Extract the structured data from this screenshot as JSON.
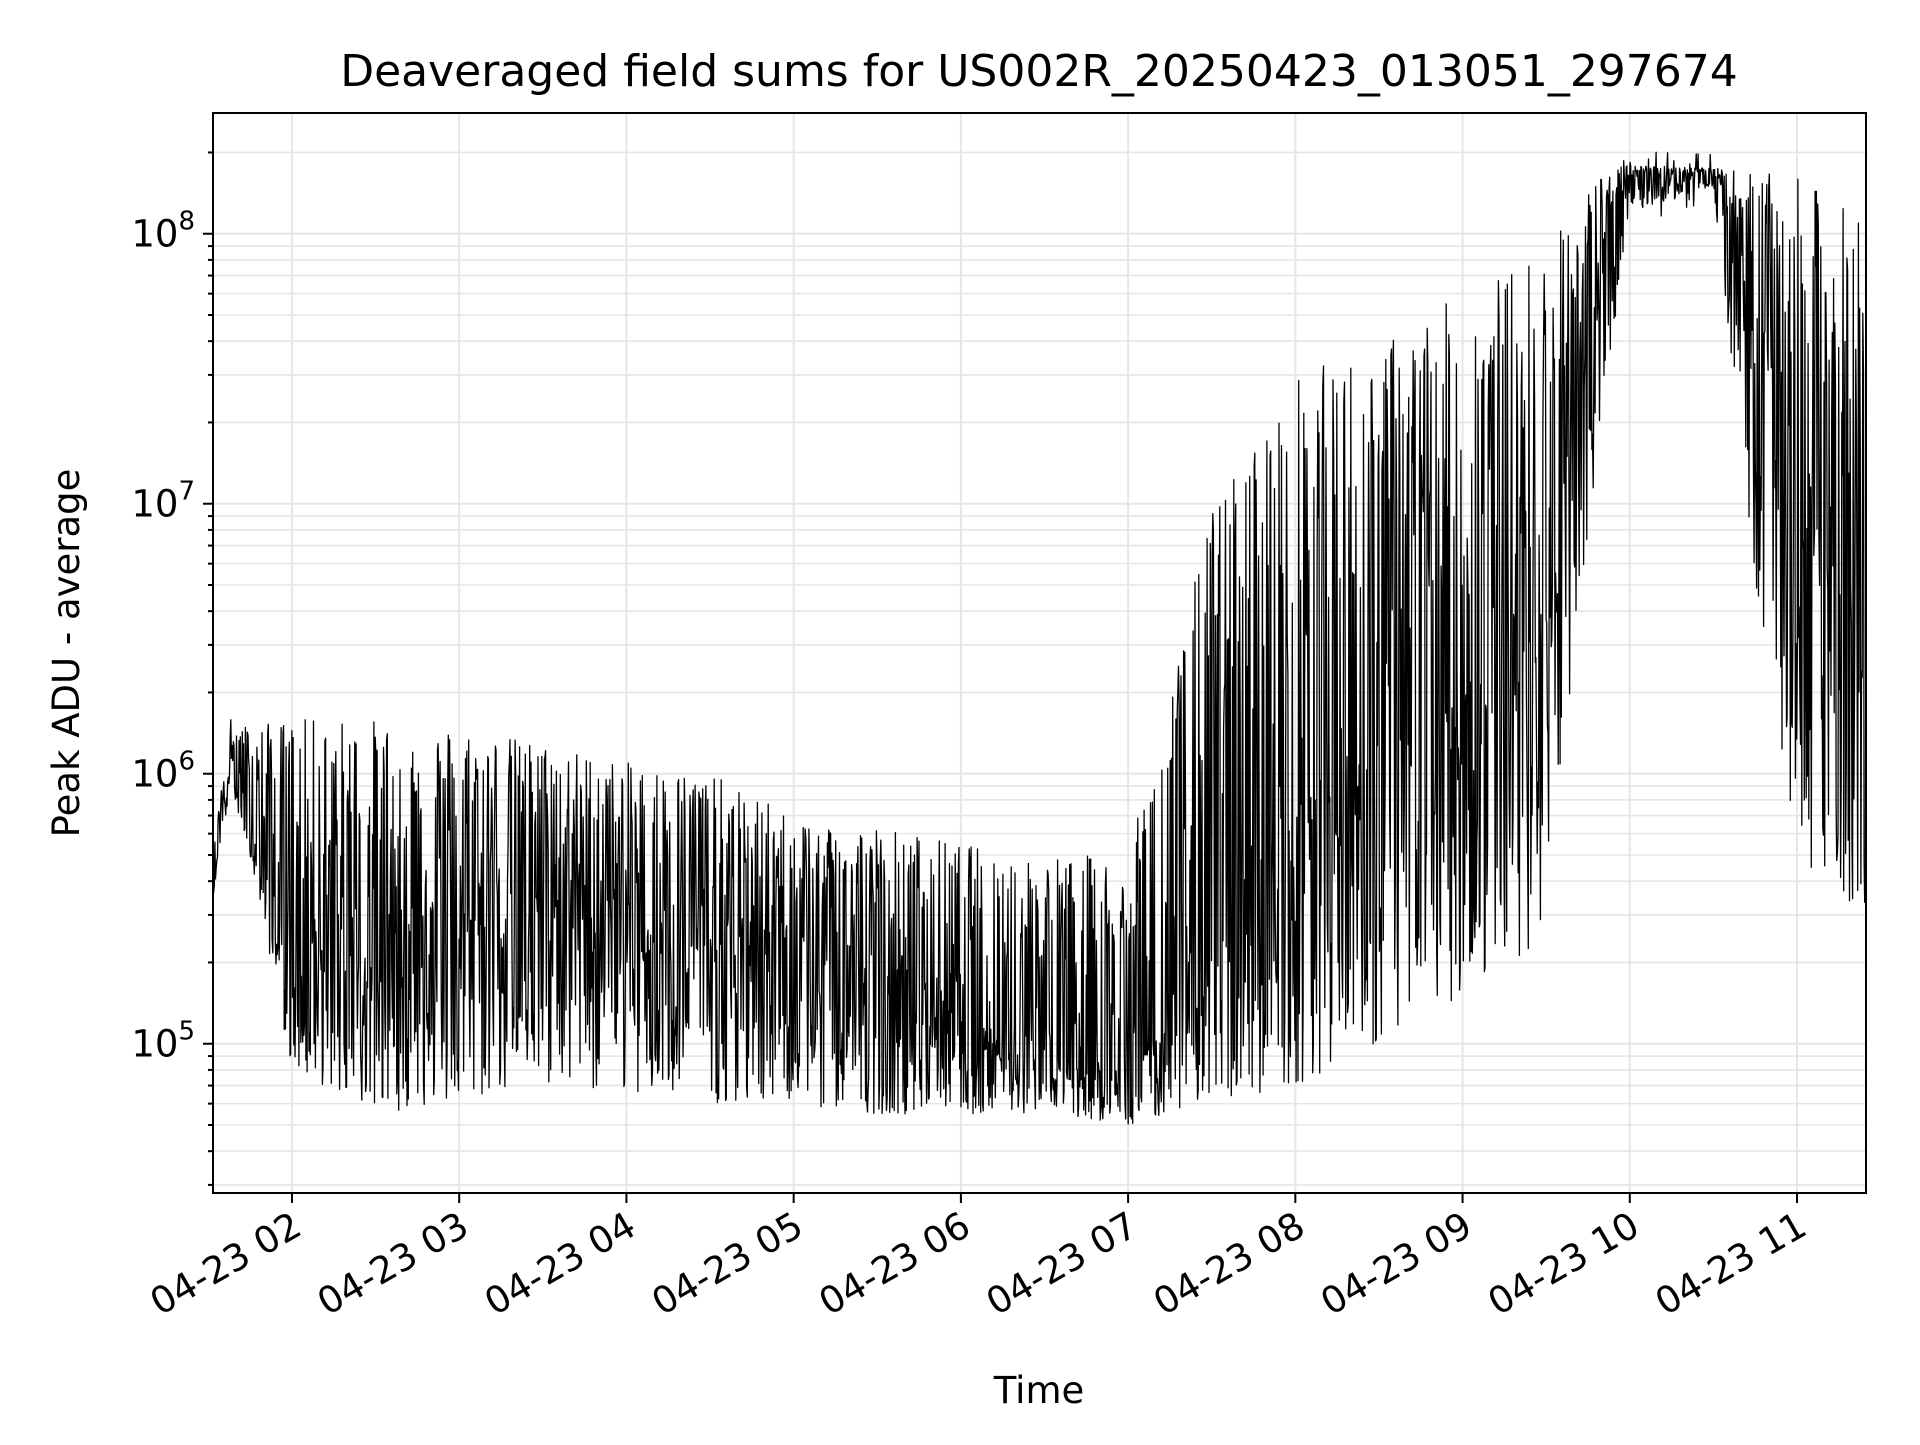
{
  "chart_data": {
    "type": "line",
    "title": "Deaveraged field sums for US002R_20250423_013051_297674",
    "xlabel": "Time",
    "ylabel": "Peak ADU - average",
    "y_scale": "log",
    "ylim": [
      28000,
      280000000
    ],
    "xlim": [
      "04-23 01:31:40",
      "04-23 11:24:45"
    ],
    "x_ticks": [
      "04-23 02",
      "04-23 03",
      "04-23 04",
      "04-23 05",
      "04-23 06",
      "04-23 07",
      "04-23 08",
      "04-23 09",
      "04-23 10",
      "04-23 11"
    ],
    "y_ticks": [
      {
        "base": "10",
        "exp": "5",
        "value": 100000
      },
      {
        "base": "10",
        "exp": "6",
        "value": 1000000
      },
      {
        "base": "10",
        "exp": "7",
        "value": 10000000
      },
      {
        "base": "10",
        "exp": "8",
        "value": 100000000
      }
    ],
    "grid": true,
    "line_color": "#000000",
    "grid_color": "#e6e6e6",
    "series": [
      {
        "x": [
          "04-23 01:31:40",
          "04-23 01:38",
          "04-23 01:45",
          "04-23 02:00",
          "04-23 02:30",
          "04-23 03:00",
          "04-23 03:30",
          "04-23 04:00",
          "04-23 04:30",
          "04-23 05:00",
          "04-23 05:30",
          "04-23 06:00",
          "04-23 06:30",
          "04-23 07:00",
          "04-23 07:15",
          "04-23 07:30",
          "04-23 08:00",
          "04-23 08:30",
          "04-23 09:00",
          "04-23 09:30",
          "04-23 09:50",
          "04-23 10:00",
          "04-23 10:30",
          "04-23 10:45",
          "04-23 11:00",
          "04-23 11:24"
        ],
        "upper": [
          500000,
          1600000,
          1500000,
          1600000,
          1600000,
          1500000,
          1300000,
          1100000,
          1000000,
          700000,
          650000,
          550000,
          500000,
          500000,
          2000000,
          10000000,
          30000000,
          40000000,
          60000000,
          90000000,
          170000000,
          180000000,
          175000000,
          170000000,
          160000000,
          120000000
        ],
        "lower": [
          350000,
          900000,
          500000,
          80000,
          55000,
          60000,
          70000,
          65000,
          60000,
          60000,
          55000,
          55000,
          55000,
          50000,
          55000,
          60000,
          70000,
          100000,
          150000,
          250000,
          20000000,
          120000000,
          150000000,
          5000000,
          500000,
          300000
        ],
        "center": [
          400000,
          1200000,
          700000,
          250000,
          200000,
          300000,
          350000,
          280000,
          250000,
          200000,
          150000,
          120000,
          100000,
          90000,
          120000,
          200000,
          600000,
          1000000,
          1500000,
          3000000,
          80000000,
          160000000,
          170000000,
          50000000,
          10000000,
          3000000
        ]
      }
    ]
  }
}
